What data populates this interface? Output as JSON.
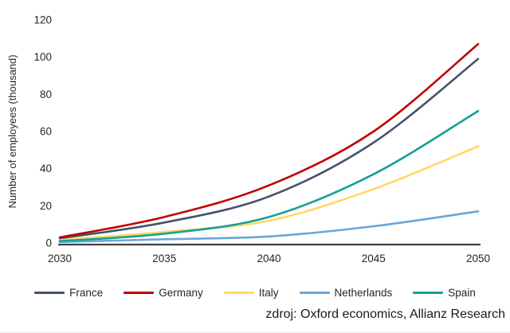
{
  "chart_data": {
    "type": "line",
    "x": [
      2030,
      2035,
      2040,
      2045,
      2050
    ],
    "series": [
      {
        "name": "France",
        "color": "#44546A",
        "values": [
          2.5,
          11,
          25,
          54,
          99
        ]
      },
      {
        "name": "Germany",
        "color": "#C00000",
        "values": [
          3,
          14,
          31,
          60,
          107
        ]
      },
      {
        "name": "Italy",
        "color": "#FFD966",
        "values": [
          1.5,
          6,
          12,
          29,
          52
        ]
      },
      {
        "name": "Netherlands",
        "color": "#6BA5D9",
        "values": [
          0.5,
          2,
          3.5,
          9,
          17
        ]
      },
      {
        "name": "Spain",
        "color": "#18A094",
        "values": [
          1,
          5,
          14,
          37,
          71
        ]
      }
    ],
    "title": "",
    "xlabel": "",
    "ylabel": "Number of employees (thousand)",
    "ylim": [
      0,
      120
    ],
    "xlim": [
      2030,
      2050
    ],
    "y_ticks": [
      0,
      20,
      40,
      60,
      80,
      100,
      120
    ],
    "x_ticks": [
      2030,
      2035,
      2040,
      2045,
      2050
    ],
    "grid": false,
    "legend_position": "bottom"
  },
  "source_note": "zdroj: Oxford economics, Allianz Research",
  "colors": {
    "axis_line": "#404040",
    "tick_text": "#262626",
    "background": "#FFFFFF"
  }
}
